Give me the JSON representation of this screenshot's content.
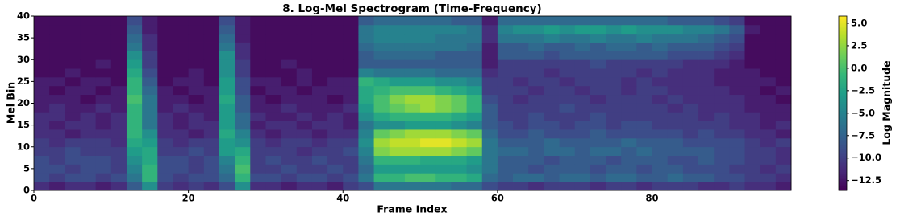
{
  "chart_data": {
    "type": "heatmap",
    "title": "8. Log-Mel Spectrogram (Time-Frequency)",
    "x_label": "Frame Index",
    "y_label": "Mel Bin",
    "colorbar_label": "Log Magnitude",
    "colormap": "viridis",
    "xlim": [
      0,
      98
    ],
    "ylim": [
      0,
      40
    ],
    "xticks": [
      0,
      20,
      40,
      60,
      80
    ],
    "yticks": [
      0,
      5,
      10,
      15,
      20,
      25,
      30,
      35,
      40
    ],
    "clim": [
      -13.6,
      5.8
    ],
    "cticks": [
      {
        "value": 5,
        "label": "5.0"
      },
      {
        "value": 2.5,
        "label": "2.5"
      },
      {
        "value": 0,
        "label": "0.0"
      },
      {
        "value": -2.5,
        "label": "−2.5"
      },
      {
        "value": -5,
        "label": "−5.0"
      },
      {
        "value": -7.5,
        "label": "−7.5"
      },
      {
        "value": -10,
        "label": "−10.0"
      },
      {
        "value": -12.5,
        "label": "−12.5"
      }
    ],
    "x_edges": [
      0,
      2,
      4,
      6,
      8,
      10,
      12,
      14,
      16,
      18,
      20,
      22,
      24,
      26,
      28,
      30,
      32,
      34,
      36,
      38,
      40,
      42,
      44,
      46,
      48,
      50,
      52,
      54,
      56,
      58,
      60,
      62,
      64,
      66,
      68,
      70,
      72,
      74,
      76,
      78,
      80,
      82,
      84,
      86,
      88,
      90,
      92,
      94,
      96,
      98
    ],
    "y_edges": [
      0,
      2,
      4,
      6,
      8,
      10,
      12,
      14,
      16,
      18,
      20,
      22,
      24,
      26,
      28,
      30,
      32,
      34,
      36,
      38,
      40
    ],
    "values": [
      [
        -11,
        -12,
        -11,
        -11,
        -12,
        -11,
        -8,
        -4,
        -10,
        -11,
        -10,
        -11,
        -9,
        -4,
        -11,
        -11,
        -12,
        -11,
        -11,
        -12,
        -10,
        -9,
        -6,
        -6,
        -6,
        -6,
        -6,
        -7,
        -7,
        -9,
        -10,
        -10,
        -11,
        -10,
        -10,
        -10,
        -11,
        -10,
        -10,
        -11,
        -10,
        -10,
        -10,
        -11,
        -11,
        -10,
        -11,
        -11,
        -12
      ],
      [
        -9,
        -10,
        -9,
        -9,
        -10,
        -9,
        -6,
        -1,
        -9,
        -10,
        -9,
        -9,
        -7,
        -1,
        -9,
        -9,
        -10,
        -9,
        -9,
        -10,
        -9,
        -6,
        -1,
        -1,
        0,
        0,
        -1,
        -1,
        -2,
        -7,
        -8,
        -7,
        -7,
        -8,
        -7,
        -7,
        -8,
        -7,
        -7,
        -8,
        -8,
        -7,
        -8,
        -8,
        -9,
        -9,
        -10,
        -10,
        -11
      ],
      [
        -9,
        -9,
        -10,
        -9,
        -9,
        -10,
        -5,
        -1,
        -9,
        -9,
        -10,
        -9,
        -6,
        0,
        -10,
        -10,
        -9,
        -10,
        -10,
        -9,
        -10,
        -7,
        -3,
        -3,
        -3,
        -3,
        -3,
        -3,
        -4,
        -6,
        -8,
        -8,
        -9,
        -8,
        -8,
        -8,
        -9,
        -8,
        -8,
        -9,
        -8,
        -8,
        -9,
        -9,
        -9,
        -10,
        -10,
        -11,
        -10
      ],
      [
        -9,
        -10,
        -9,
        -9,
        -9,
        -10,
        -4,
        -2,
        -9,
        -9,
        -10,
        -9,
        -5,
        -1,
        -10,
        -9,
        -10,
        -10,
        -9,
        -10,
        -10,
        -6,
        -1,
        -1,
        -1,
        -2,
        -2,
        -2,
        -3,
        -6,
        -8,
        -8,
        -8,
        -9,
        -8,
        -8,
        -8,
        -9,
        -8,
        -8,
        -8,
        -9,
        -9,
        -8,
        -9,
        -9,
        -10,
        -10,
        -11
      ],
      [
        -10,
        -10,
        -9,
        -10,
        -10,
        -10,
        -3,
        -2,
        -10,
        -10,
        -9,
        -10,
        -3,
        -2,
        -10,
        -10,
        -10,
        -11,
        -10,
        -10,
        -9,
        -5,
        2,
        3,
        3,
        3,
        3,
        2,
        1,
        -6,
        -7,
        -7,
        -8,
        -7,
        -7,
        -8,
        -7,
        -7,
        -8,
        -7,
        -8,
        -8,
        -8,
        -8,
        -9,
        -9,
        -10,
        -10,
        -11
      ],
      [
        -10,
        -11,
        -10,
        -10,
        -10,
        -11,
        -2,
        -3,
        -10,
        -11,
        -10,
        -10,
        -3,
        -4,
        -10,
        -11,
        -10,
        -10,
        -11,
        -10,
        -10,
        -4,
        3,
        4,
        4,
        5,
        5,
        4,
        3,
        -6,
        -8,
        -8,
        -8,
        -7,
        -8,
        -8,
        -8,
        -8,
        -7,
        -8,
        -8,
        -8,
        -9,
        -9,
        -9,
        -9,
        -10,
        -11,
        -10
      ],
      [
        -11,
        -11,
        -12,
        -11,
        -11,
        -11,
        -1,
        -4,
        -11,
        -11,
        -12,
        -11,
        -2,
        -5,
        -11,
        -12,
        -11,
        -11,
        -12,
        -11,
        -11,
        -5,
        1,
        2,
        3,
        3,
        3,
        2,
        1,
        -7,
        -9,
        -9,
        -8,
        -9,
        -9,
        -9,
        -8,
        -9,
        -9,
        -9,
        -9,
        -9,
        -10,
        -9,
        -10,
        -10,
        -11,
        -11,
        -12
      ],
      [
        -11,
        -12,
        -11,
        -11,
        -12,
        -11,
        -1,
        -6,
        -11,
        -12,
        -11,
        -11,
        -3,
        -7,
        -12,
        -11,
        -11,
        -12,
        -11,
        -11,
        -12,
        -6,
        -4,
        -4,
        -3,
        -3,
        -3,
        -4,
        -5,
        -8,
        -9,
        -10,
        -9,
        -9,
        -10,
        -9,
        -9,
        -10,
        -9,
        -9,
        -10,
        -10,
        -10,
        -10,
        -10,
        -11,
        -11,
        -12,
        -11
      ],
      [
        -11,
        -11,
        -12,
        -11,
        -12,
        -11,
        -1,
        -6,
        -11,
        -12,
        -11,
        -12,
        -3,
        -7,
        -11,
        -12,
        -12,
        -11,
        -12,
        -11,
        -12,
        -4,
        -2,
        -1,
        -1,
        -1,
        -1,
        -2,
        -3,
        -8,
        -10,
        -10,
        -9,
        -10,
        -10,
        -10,
        -9,
        -10,
        -10,
        -10,
        -10,
        -10,
        -10,
        -11,
        -10,
        -11,
        -11,
        -12,
        -12
      ],
      [
        -12,
        -11,
        -12,
        -12,
        -11,
        -12,
        -1,
        -6,
        -12,
        -11,
        -12,
        -12,
        -3,
        -8,
        -12,
        -12,
        -11,
        -12,
        -12,
        -12,
        -11,
        -3,
        0,
        1,
        2,
        3,
        2,
        1,
        -1,
        -8,
        -10,
        -10,
        -10,
        -10,
        -9,
        -10,
        -10,
        -10,
        -10,
        -10,
        -10,
        -11,
        -10,
        -11,
        -11,
        -11,
        -12,
        -12,
        -12
      ],
      [
        -12,
        -12,
        -12,
        -13,
        -12,
        -12,
        0,
        -6,
        -12,
        -12,
        -13,
        -12,
        -2,
        -8,
        -12,
        -13,
        -12,
        -12,
        -12,
        -13,
        -12,
        -2,
        0,
        2,
        3,
        3,
        2,
        1,
        -1,
        -9,
        -10,
        -11,
        -10,
        -10,
        -10,
        -10,
        -11,
        -10,
        -10,
        -10,
        -11,
        -10,
        -11,
        -11,
        -11,
        -11,
        -12,
        -12,
        -13
      ],
      [
        -12,
        -13,
        -12,
        -12,
        -13,
        -12,
        -1,
        -7,
        -12,
        -13,
        -12,
        -12,
        -3,
        -9,
        -13,
        -12,
        -12,
        -13,
        -12,
        -12,
        -12,
        -2,
        -1,
        0,
        0,
        0,
        -1,
        -2,
        -3,
        -10,
        -10,
        -10,
        -11,
        -10,
        -10,
        -11,
        -10,
        -10,
        -11,
        -10,
        -10,
        -11,
        -11,
        -11,
        -11,
        -12,
        -12,
        -13,
        -12
      ],
      [
        -12,
        -12,
        -13,
        -12,
        -12,
        -13,
        -1,
        -8,
        -13,
        -12,
        -12,
        -13,
        -3,
        -9,
        -12,
        -12,
        -13,
        -12,
        -13,
        -12,
        -12,
        -1,
        -2,
        -3,
        -3,
        -3,
        -4,
        -4,
        -5,
        -10,
        -10,
        -11,
        -10,
        -10,
        -11,
        -10,
        -10,
        -10,
        -11,
        -10,
        -11,
        -11,
        -11,
        -11,
        -12,
        -12,
        -12,
        -12,
        -13
      ],
      [
        -13,
        -13,
        -12,
        -13,
        -13,
        -13,
        -2,
        -9,
        -13,
        -13,
        -12,
        -13,
        -4,
        -10,
        -13,
        -13,
        -13,
        -12,
        -13,
        -13,
        -13,
        -5,
        -6,
        -6,
        -6,
        -6,
        -7,
        -7,
        -7,
        -11,
        -10,
        -10,
        -10,
        -11,
        -10,
        -10,
        -10,
        -10,
        -10,
        -11,
        -10,
        -11,
        -11,
        -11,
        -12,
        -12,
        -12,
        -13,
        -13
      ],
      [
        -13,
        -13,
        -13,
        -13,
        -12,
        -13,
        -3,
        -10,
        -13,
        -13,
        -13,
        -13,
        -4,
        -10,
        -13,
        -13,
        -12,
        -13,
        -13,
        -13,
        -13,
        -8,
        -8,
        -8,
        -8,
        -8,
        -8,
        -8,
        -8,
        -12,
        -10,
        -10,
        -10,
        -10,
        -10,
        -10,
        -9,
        -10,
        -10,
        -10,
        -10,
        -10,
        -11,
        -11,
        -11,
        -12,
        -13,
        -13,
        -13
      ],
      [
        -13,
        -13,
        -13,
        -13,
        -13,
        -13,
        -4,
        -10,
        -13,
        -13,
        -13,
        -13,
        -4,
        -11,
        -13,
        -13,
        -13,
        -13,
        -13,
        -13,
        -13,
        -8,
        -7,
        -7,
        -7,
        -7,
        -8,
        -8,
        -8,
        -12,
        -8,
        -8,
        -8,
        -9,
        -8,
        -8,
        -8,
        -8,
        -8,
        -8,
        -8,
        -9,
        -9,
        -9,
        -10,
        -11,
        -13,
        -13,
        -13
      ],
      [
        -13,
        -13,
        -13,
        -13,
        -13,
        -13,
        -6,
        -11,
        -13,
        -13,
        -13,
        -13,
        -6,
        -11,
        -13,
        -13,
        -13,
        -13,
        -13,
        -13,
        -13,
        -7,
        -6,
        -6,
        -6,
        -6,
        -6,
        -6,
        -7,
        -12,
        -8,
        -8,
        -7,
        -8,
        -8,
        -7,
        -8,
        -7,
        -7,
        -8,
        -7,
        -8,
        -8,
        -8,
        -9,
        -10,
        -13,
        -13,
        -13
      ],
      [
        -13,
        -13,
        -13,
        -13,
        -13,
        -13,
        -7,
        -11,
        -13,
        -13,
        -13,
        -13,
        -7,
        -12,
        -13,
        -13,
        -13,
        -13,
        -13,
        -13,
        -13,
        -6,
        -5,
        -5,
        -5,
        -5,
        -6,
        -6,
        -6,
        -11,
        -6,
        -6,
        -6,
        -5,
        -6,
        -6,
        -5,
        -6,
        -6,
        -5,
        -6,
        -6,
        -6,
        -7,
        -8,
        -9,
        -13,
        -13,
        -13
      ],
      [
        -13,
        -13,
        -13,
        -13,
        -13,
        -13,
        -8,
        -12,
        -13,
        -13,
        -13,
        -13,
        -8,
        -12,
        -13,
        -13,
        -13,
        -13,
        -13,
        -13,
        -13,
        -6,
        -5,
        -5,
        -5,
        -5,
        -5,
        -5,
        -6,
        -11,
        -5,
        -4,
        -4,
        -3,
        -4,
        -3,
        -3,
        -4,
        -3,
        -4,
        -4,
        -4,
        -5,
        -5,
        -6,
        -8,
        -12,
        -13,
        -13
      ],
      [
        -13,
        -13,
        -13,
        -13,
        -13,
        -13,
        -9,
        -12,
        -13,
        -13,
        -13,
        -13,
        -9,
        -12,
        -13,
        -13,
        -13,
        -13,
        -13,
        -13,
        -13,
        -8,
        -7,
        -7,
        -7,
        -7,
        -7,
        -8,
        -8,
        -12,
        -7,
        -7,
        -7,
        -7,
        -7,
        -7,
        -7,
        -7,
        -7,
        -7,
        -7,
        -8,
        -8,
        -8,
        -9,
        -10,
        -13,
        -13,
        -13
      ]
    ]
  }
}
